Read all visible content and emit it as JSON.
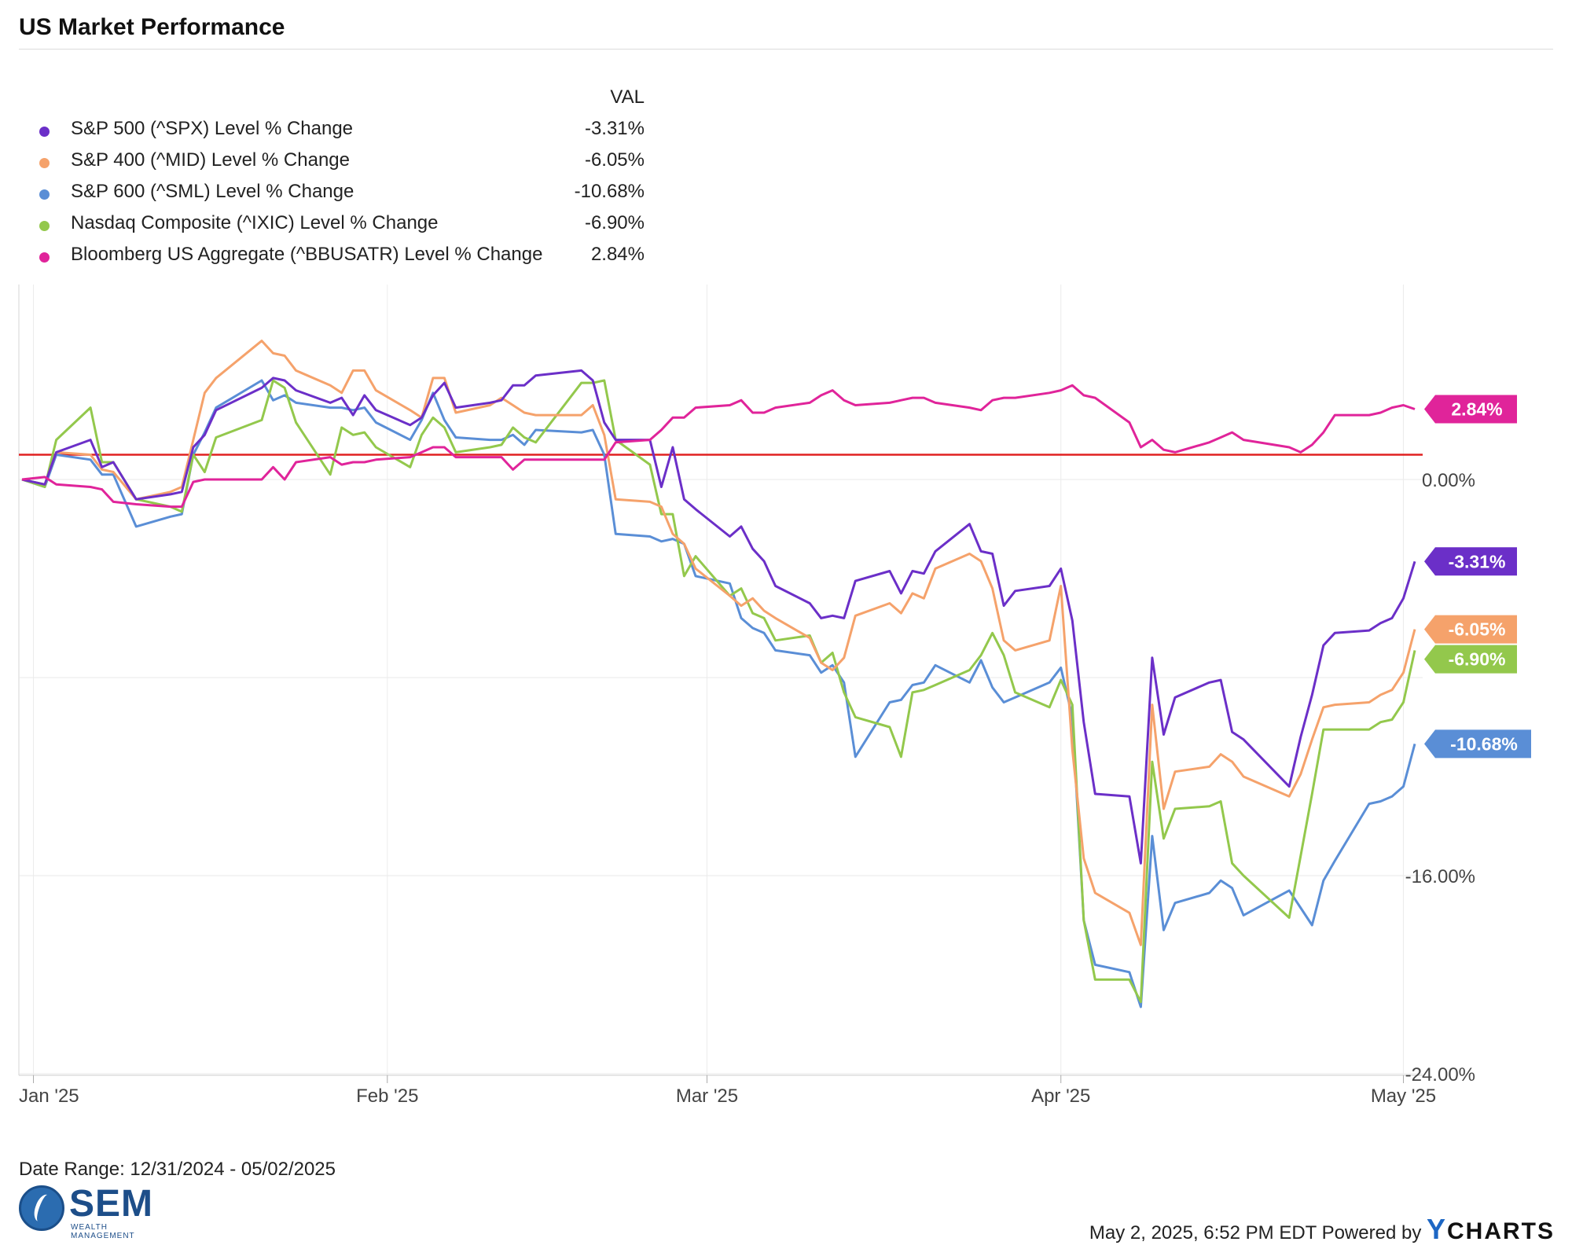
{
  "header": {
    "title": "US Market Performance"
  },
  "legend": {
    "column_header": "VAL",
    "items": [
      {
        "name": "S&P 500 (^SPX) Level % Change",
        "value": "-3.31%",
        "color": "#6b2fc8"
      },
      {
        "name": "S&P 400 (^MID) Level % Change",
        "value": "-6.05%",
        "color": "#f5a26b"
      },
      {
        "name": "S&P 600 (^SML) Level % Change",
        "value": "-10.68%",
        "color": "#5a8ed6"
      },
      {
        "name": "Nasdaq Composite (^IXIC) Level % Change",
        "value": "-6.90%",
        "color": "#93c84c"
      },
      {
        "name": "Bloomberg US Aggregate (^BBUSATR) Level % Change",
        "value": "2.84%",
        "color": "#e0249a"
      }
    ]
  },
  "footer": {
    "date_range": "Date Range: 12/31/2024 - 05/02/2025",
    "logo_text": "SEM",
    "logo_subtext": "WEALTH MANAGEMENT",
    "timestamp": "May 2, 2025, 6:52 PM EDT Powered by",
    "brand_y": "Y",
    "brand_rest": "CHARTS"
  },
  "chart_data": {
    "type": "line",
    "title": "US Market Performance",
    "ylim": [
      -24,
      8
    ],
    "y_ticks": [
      "0.00%",
      "-16.00%",
      "-24.00%"
    ],
    "x_ticks": [
      {
        "label": "Jan '25",
        "date": "2025-01-01"
      },
      {
        "label": "Feb '25",
        "date": "2025-02-01"
      },
      {
        "label": "Mar '25",
        "date": "2025-03-01"
      },
      {
        "label": "Apr '25",
        "date": "2025-04-01"
      },
      {
        "label": "May '25",
        "date": "2025-05-01"
      }
    ],
    "xlim": [
      "2024-12-31",
      "2025-05-02"
    ],
    "reference_line": {
      "y": 1.0,
      "color": "#e02020"
    },
    "dates": [
      "2024-12-31",
      "2025-01-02",
      "2025-01-03",
      "2025-01-06",
      "2025-01-07",
      "2025-01-08",
      "2025-01-10",
      "2025-01-13",
      "2025-01-14",
      "2025-01-15",
      "2025-01-16",
      "2025-01-17",
      "2025-01-21",
      "2025-01-22",
      "2025-01-23",
      "2025-01-24",
      "2025-01-27",
      "2025-01-28",
      "2025-01-29",
      "2025-01-30",
      "2025-01-31",
      "2025-02-03",
      "2025-02-04",
      "2025-02-05",
      "2025-02-06",
      "2025-02-07",
      "2025-02-10",
      "2025-02-11",
      "2025-02-12",
      "2025-02-13",
      "2025-02-14",
      "2025-02-18",
      "2025-02-19",
      "2025-02-20",
      "2025-02-21",
      "2025-02-24",
      "2025-02-25",
      "2025-02-26",
      "2025-02-27",
      "2025-02-28",
      "2025-03-03",
      "2025-03-04",
      "2025-03-05",
      "2025-03-06",
      "2025-03-07",
      "2025-03-10",
      "2025-03-11",
      "2025-03-12",
      "2025-03-13",
      "2025-03-14",
      "2025-03-17",
      "2025-03-18",
      "2025-03-19",
      "2025-03-20",
      "2025-03-21",
      "2025-03-24",
      "2025-03-25",
      "2025-03-26",
      "2025-03-27",
      "2025-03-28",
      "2025-03-31",
      "2025-04-01",
      "2025-04-02",
      "2025-04-03",
      "2025-04-04",
      "2025-04-07",
      "2025-04-08",
      "2025-04-09",
      "2025-04-10",
      "2025-04-11",
      "2025-04-14",
      "2025-04-15",
      "2025-04-16",
      "2025-04-17",
      "2025-04-21",
      "2025-04-22",
      "2025-04-23",
      "2025-04-24",
      "2025-04-25",
      "2025-04-28",
      "2025-04-29",
      "2025-04-30",
      "2025-05-01",
      "2025-05-02"
    ],
    "series": [
      {
        "name": "S&P 500 (^SPX) Level % Change",
        "color": "#6b2fc8",
        "end_label": "-3.31%",
        "values": [
          0,
          -0.2,
          1.1,
          1.6,
          0.5,
          0.7,
          -0.8,
          -0.6,
          -0.5,
          1.3,
          1.8,
          2.8,
          3.7,
          4.1,
          4.0,
          3.6,
          3.1,
          3.3,
          2.6,
          3.4,
          2.8,
          2.2,
          2.5,
          3.4,
          3.9,
          2.9,
          3.1,
          3.2,
          3.8,
          3.8,
          4.2,
          4.4,
          4.0,
          2.3,
          1.6,
          1.6,
          -0.3,
          1.3,
          -0.8,
          -1.2,
          -2.3,
          -1.9,
          -2.8,
          -3.3,
          -4.3,
          -5.0,
          -5.6,
          -5.5,
          -5.6,
          -4.1,
          -3.7,
          -4.6,
          -3.7,
          -3.8,
          -2.9,
          -1.8,
          -2.9,
          -3.0,
          -5.1,
          -4.5,
          -4.3,
          -3.6,
          -5.7,
          -9.8,
          -12.7,
          -12.8,
          -15.5,
          -7.2,
          -10.3,
          -8.8,
          -8.2,
          -8.1,
          -10.2,
          -10.5,
          -12.4,
          -10.4,
          -8.7,
          -6.7,
          -6.2,
          -6.1,
          -5.8,
          -5.6,
          -4.8,
          -3.31
        ]
      },
      {
        "name": "S&P 400 (^MID) Level % Change",
        "color": "#f5a26b",
        "end_label": "-6.05%",
        "values": [
          0,
          -0.2,
          1.1,
          1.0,
          0.4,
          0.3,
          -0.8,
          -0.5,
          -0.3,
          1.6,
          3.5,
          4.1,
          5.6,
          5.1,
          5.0,
          4.4,
          3.8,
          3.5,
          4.4,
          4.4,
          3.6,
          2.8,
          2.5,
          4.1,
          4.1,
          2.7,
          3.0,
          3.3,
          3.0,
          2.7,
          2.6,
          2.6,
          3.0,
          1.8,
          -0.8,
          -0.9,
          -1.1,
          -2.2,
          -2.6,
          -3.6,
          -4.7,
          -5.1,
          -4.8,
          -5.3,
          -5.6,
          -6.4,
          -7.4,
          -7.7,
          -7.2,
          -5.5,
          -5.0,
          -5.4,
          -4.6,
          -4.8,
          -3.6,
          -3.0,
          -3.3,
          -4.4,
          -6.5,
          -6.9,
          -6.5,
          -4.3,
          -10.9,
          -15.3,
          -16.7,
          -17.5,
          -18.8,
          -9.1,
          -13.3,
          -11.8,
          -11.6,
          -11.1,
          -11.4,
          -12.0,
          -12.8,
          -11.9,
          -10.5,
          -9.2,
          -9.1,
          -9.0,
          -8.7,
          -8.5,
          -7.8,
          -6.05
        ]
      },
      {
        "name": "S&P 600 (^SML) Level % Change",
        "color": "#5a8ed6",
        "end_label": "-10.68%",
        "values": [
          0,
          -0.3,
          1.0,
          0.8,
          0.2,
          0.2,
          -1.9,
          -1.5,
          -1.4,
          1.0,
          1.9,
          2.9,
          4.0,
          3.2,
          3.4,
          3.1,
          2.9,
          2.9,
          2.8,
          2.9,
          2.3,
          1.6,
          2.4,
          3.5,
          2.4,
          1.7,
          1.6,
          1.6,
          1.8,
          1.4,
          2.0,
          1.9,
          2.0,
          1.0,
          -2.2,
          -2.3,
          -2.5,
          -2.4,
          -2.6,
          -3.9,
          -4.2,
          -5.6,
          -6.0,
          -6.2,
          -6.9,
          -7.1,
          -7.8,
          -7.5,
          -8.2,
          -11.2,
          -9.0,
          -8.9,
          -8.3,
          -8.2,
          -7.5,
          -8.2,
          -7.3,
          -8.4,
          -9.0,
          -8.8,
          -8.2,
          -7.6,
          -9.6,
          -17.8,
          -19.6,
          -19.9,
          -21.3,
          -14.4,
          -18.2,
          -17.1,
          -16.7,
          -16.2,
          -16.5,
          -17.6,
          -16.6,
          -17.3,
          -18.0,
          -16.2,
          -15.4,
          -13.1,
          -13.0,
          -12.8,
          -12.4,
          -10.68
        ]
      },
      {
        "name": "Nasdaq Composite (^IXIC) Level % Change",
        "color": "#93c84c",
        "end_label": "-6.90%",
        "values": [
          0,
          -0.3,
          1.6,
          2.9,
          0.7,
          0.7,
          -0.8,
          -1.1,
          -1.3,
          1.0,
          0.3,
          1.7,
          2.4,
          4.0,
          3.7,
          2.3,
          0.2,
          2.1,
          1.8,
          1.9,
          1.3,
          0.5,
          1.8,
          2.5,
          2.1,
          1.1,
          1.3,
          1.4,
          2.1,
          1.7,
          1.5,
          3.9,
          3.9,
          4.0,
          1.6,
          0.6,
          -1.4,
          -1.4,
          -3.9,
          -3.1,
          -4.7,
          -4.4,
          -5.4,
          -5.6,
          -6.5,
          -6.3,
          -7.4,
          -7.0,
          -8.6,
          -9.6,
          -10.0,
          -11.2,
          -8.6,
          -8.5,
          -8.3,
          -7.7,
          -7.1,
          -6.2,
          -7.1,
          -8.6,
          -9.2,
          -8.1,
          -9.1,
          -17.8,
          -20.2,
          -20.2,
          -21.1,
          -11.4,
          -14.5,
          -13.3,
          -13.2,
          -13.0,
          -15.5,
          -16.0,
          -17.7,
          -15.2,
          -12.7,
          -10.1,
          -10.1,
          -10.1,
          -9.8,
          -9.7,
          -9.0,
          -6.9
        ]
      },
      {
        "name": "Bloomberg US Aggregate (^BBUSATR) Level % Change",
        "color": "#e0249a",
        "end_label": "2.84%",
        "values": [
          0,
          0.1,
          -0.2,
          -0.3,
          -0.4,
          -0.9,
          -1.0,
          -1.1,
          -1.1,
          -0.1,
          0.0,
          0.0,
          0.0,
          0.5,
          0.0,
          0.7,
          0.9,
          0.6,
          0.7,
          0.7,
          0.8,
          0.9,
          1.1,
          1.3,
          1.3,
          0.9,
          0.9,
          0.9,
          0.4,
          0.8,
          0.8,
          0.8,
          0.8,
          0.8,
          1.5,
          1.6,
          2.0,
          2.5,
          2.5,
          2.9,
          3.0,
          3.2,
          2.7,
          2.7,
          2.9,
          3.1,
          3.4,
          3.6,
          3.2,
          3.0,
          3.1,
          3.2,
          3.3,
          3.3,
          3.1,
          2.9,
          2.8,
          3.2,
          3.3,
          3.3,
          3.5,
          3.6,
          3.8,
          3.4,
          3.3,
          2.3,
          1.3,
          1.6,
          1.2,
          1.1,
          1.5,
          1.7,
          1.9,
          1.6,
          1.3,
          1.1,
          1.4,
          1.9,
          2.6,
          2.6,
          2.7,
          2.9,
          3.0,
          2.84
        ]
      }
    ]
  }
}
